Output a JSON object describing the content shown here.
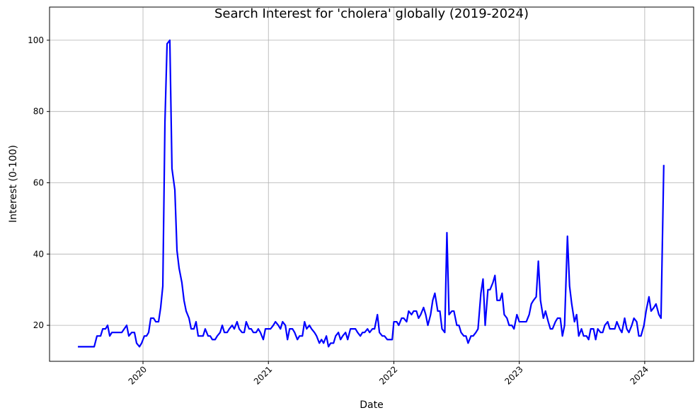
{
  "chart_data": {
    "type": "line",
    "title": "Search Interest for 'cholera' globally (2019-2024)",
    "x_label": "Date",
    "y_label": "Interest (0-100)",
    "color": "#0000ff",
    "grid": true,
    "xlim": [
      2019.255,
      2024.39
    ],
    "ylim": [
      9.9,
      109.3
    ],
    "xticks": [
      2020,
      2021,
      2022,
      2023,
      2024
    ],
    "yticks": [
      20,
      40,
      60,
      80,
      100
    ],
    "x": [
      2019.481,
      2019.611,
      2019.633,
      2019.662,
      2019.679,
      2019.701,
      2019.718,
      2019.735,
      2019.752,
      2019.831,
      2019.87,
      2019.887,
      2019.91,
      2019.932,
      2019.949,
      2019.972,
      2019.989,
      2020.011,
      2020.028,
      2020.045,
      2020.062,
      2020.085,
      2020.102,
      2020.124,
      2020.141,
      2020.158,
      2020.175,
      2020.192,
      2020.214,
      2020.231,
      2020.254,
      2020.271,
      2020.288,
      2020.31,
      2020.327,
      2020.344,
      2020.367,
      2020.384,
      2020.406,
      2020.423,
      2020.44,
      2020.479,
      2020.496,
      2020.519,
      2020.536,
      2020.553,
      2020.575,
      2020.592,
      2020.615,
      2020.632,
      2020.649,
      2020.671,
      2020.688,
      2020.711,
      2020.728,
      2020.75,
      2020.767,
      2020.79,
      2020.807,
      2020.823,
      2020.846,
      2020.863,
      2020.88,
      2020.902,
      2020.919,
      2020.936,
      2020.959,
      2020.976,
      2021.0,
      2021.017,
      2021.039,
      2021.056,
      2021.079,
      2021.096,
      2021.113,
      2021.135,
      2021.152,
      2021.169,
      2021.192,
      2021.209,
      2021.231,
      2021.248,
      2021.271,
      2021.288,
      2021.305,
      2021.327,
      2021.344,
      2021.367,
      2021.384,
      2021.406,
      2021.423,
      2021.44,
      2021.462,
      2021.479,
      2021.496,
      2021.519,
      2021.536,
      2021.558,
      2021.575,
      2021.592,
      2021.615,
      2021.632,
      2021.654,
      2021.671,
      2021.694,
      2021.711,
      2021.733,
      2021.75,
      2021.767,
      2021.79,
      2021.807,
      2021.829,
      2021.846,
      2021.869,
      2021.885,
      2021.908,
      2021.925,
      2021.948,
      2021.987,
      2022.0,
      2022.023,
      2022.039,
      2022.062,
      2022.079,
      2022.102,
      2022.118,
      2022.141,
      2022.158,
      2022.18,
      2022.197,
      2022.214,
      2022.237,
      2022.254,
      2022.271,
      2022.293,
      2022.31,
      2022.327,
      2022.35,
      2022.367,
      2022.384,
      2022.406,
      2022.423,
      2022.44,
      2022.463,
      2022.479,
      2022.502,
      2022.519,
      2022.536,
      2022.558,
      2022.575,
      2022.592,
      2022.615,
      2022.632,
      2022.654,
      2022.671,
      2022.694,
      2022.711,
      2022.728,
      2022.75,
      2022.767,
      2022.79,
      2022.806,
      2022.823,
      2022.846,
      2022.863,
      2022.88,
      2022.902,
      2022.919,
      2022.941,
      2022.958,
      2022.981,
      2023.0,
      2023.017,
      2023.039,
      2023.056,
      2023.079,
      2023.096,
      2023.113,
      2023.135,
      2023.152,
      2023.169,
      2023.192,
      2023.209,
      2023.231,
      2023.248,
      2023.265,
      2023.288,
      2023.305,
      2023.327,
      2023.344,
      2023.361,
      2023.384,
      2023.401,
      2023.418,
      2023.44,
      2023.457,
      2023.474,
      2023.496,
      2023.513,
      2023.536,
      2023.553,
      2023.57,
      2023.592,
      2023.609,
      2023.626,
      2023.648,
      2023.665,
      2023.682,
      2023.705,
      2023.722,
      2023.744,
      2023.761,
      2023.778,
      2023.801,
      2023.818,
      2023.84,
      2023.857,
      2023.874,
      2023.897,
      2023.914,
      2023.936,
      2023.953,
      2023.97,
      2023.994,
      2024.011,
      2024.034,
      2024.051,
      2024.073,
      2024.09,
      2024.113,
      2024.13,
      2024.152
    ],
    "values": [
      14,
      14,
      17,
      17,
      19,
      19,
      20,
      17,
      18,
      18,
      20,
      17,
      18,
      18,
      15,
      14,
      15,
      17,
      17,
      18,
      22,
      22,
      21,
      21,
      25,
      31,
      77,
      99,
      100,
      64,
      58,
      41,
      36,
      32,
      27,
      24,
      22,
      19,
      19,
      21,
      17,
      17,
      19,
      17,
      17,
      16,
      16,
      17,
      18,
      20,
      18,
      18,
      19,
      20,
      19,
      21,
      19,
      18,
      18,
      21,
      19,
      19,
      18,
      18,
      19,
      18,
      16,
      19,
      19,
      19,
      20,
      21,
      20,
      19,
      21,
      20,
      16,
      19,
      19,
      18,
      16,
      17,
      17,
      21,
      19,
      20,
      19,
      18,
      17,
      15,
      16,
      15,
      17,
      14,
      15,
      15,
      17,
      18,
      16,
      17,
      18,
      16,
      19,
      19,
      19,
      18,
      17,
      18,
      18,
      19,
      18,
      19,
      19,
      23,
      18,
      17,
      17,
      16,
      16,
      21,
      21,
      20,
      22,
      22,
      21,
      24,
      23,
      24,
      24,
      22,
      23,
      25,
      23,
      20,
      23,
      27,
      29,
      24,
      24,
      19,
      18,
      46,
      23,
      24,
      24,
      20,
      20,
      18,
      17,
      17,
      15,
      17,
      17,
      18,
      19,
      29,
      33,
      20,
      30,
      30,
      32,
      34,
      27,
      27,
      29,
      23,
      22,
      20,
      20,
      19,
      23,
      21,
      21,
      21,
      21,
      23,
      26,
      27,
      28,
      38,
      27,
      22,
      24,
      21,
      19,
      19,
      21,
      22,
      22,
      17,
      20,
      45,
      31,
      26,
      21,
      23,
      17,
      19,
      17,
      17,
      16,
      19,
      19,
      16,
      19,
      18,
      18,
      20,
      21,
      19,
      19,
      19,
      21,
      19,
      18,
      22,
      19,
      18,
      20,
      22,
      21,
      17,
      17,
      20,
      24,
      28,
      24,
      25,
      26,
      23,
      22,
      65
    ]
  }
}
